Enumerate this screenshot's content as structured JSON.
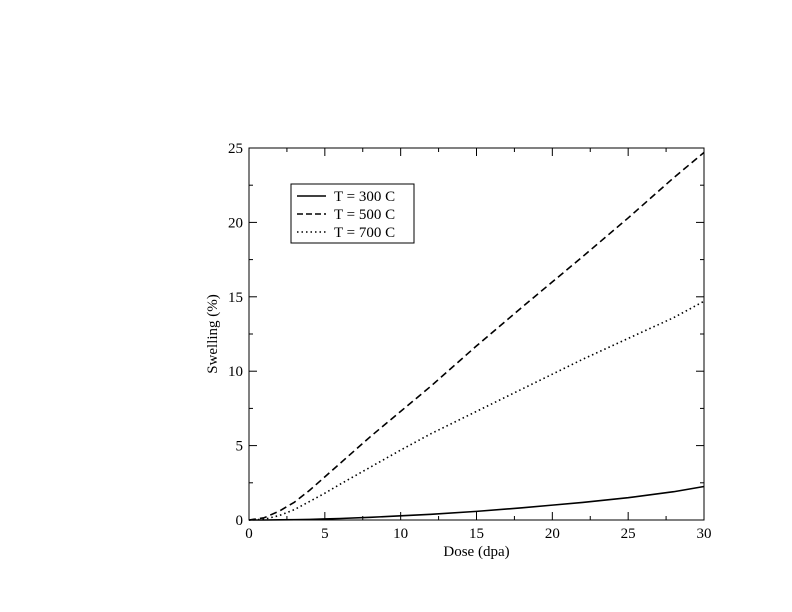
{
  "chart_data": {
    "type": "line",
    "title": "",
    "xlabel": "Dose (dpa)",
    "ylabel": "Swelling (%)",
    "xlim": [
      0,
      30
    ],
    "ylim": [
      0,
      25
    ],
    "xticks": [
      0,
      5,
      10,
      15,
      20,
      25,
      30
    ],
    "yticks": [
      0,
      5,
      10,
      15,
      20,
      25
    ],
    "grid": false,
    "legend_position": "top-left",
    "x": [
      0,
      1,
      2,
      3,
      4,
      5,
      6,
      8,
      10,
      12,
      15,
      18,
      20,
      22,
      25,
      28,
      30
    ],
    "series": [
      {
        "name": "T = 300 C",
        "line_style": "solid",
        "color": "#000000",
        "values": [
          0,
          0,
          0.01,
          0.02,
          0.04,
          0.07,
          0.1,
          0.18,
          0.28,
          0.38,
          0.58,
          0.82,
          1.0,
          1.18,
          1.5,
          1.9,
          2.25
        ]
      },
      {
        "name": "T = 500 C",
        "line_style": "dashed",
        "color": "#000000",
        "values": [
          0,
          0.15,
          0.6,
          1.2,
          2.0,
          2.9,
          3.8,
          5.6,
          7.3,
          9.0,
          11.7,
          14.3,
          16.0,
          17.7,
          20.3,
          23.0,
          24.7
        ]
      },
      {
        "name": "T = 700 C",
        "line_style": "dotted",
        "color": "#000000",
        "values": [
          0,
          0.05,
          0.3,
          0.7,
          1.25,
          1.8,
          2.4,
          3.55,
          4.7,
          5.8,
          7.3,
          8.8,
          9.8,
          10.8,
          12.2,
          13.6,
          14.7
        ]
      }
    ]
  }
}
